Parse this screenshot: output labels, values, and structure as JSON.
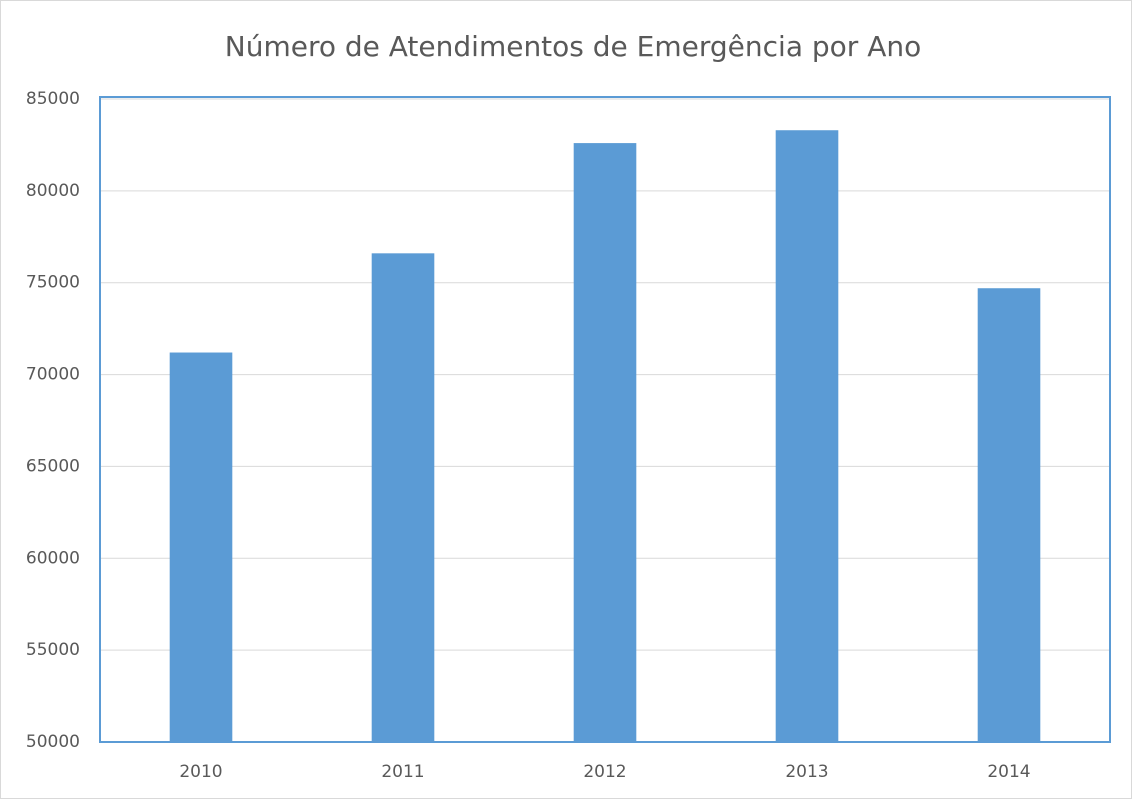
{
  "chart_data": {
    "type": "bar",
    "title": "Número de Atendimentos de Emergência por Ano",
    "categories": [
      "2010",
      "2011",
      "2012",
      "2013",
      "2014"
    ],
    "values": [
      71200,
      76600,
      82600,
      83300,
      74700
    ],
    "color": "#5b9bd5",
    "ylim": [
      50000,
      85000
    ],
    "yticks": [
      50000,
      55000,
      60000,
      65000,
      70000,
      75000,
      80000,
      85000
    ],
    "grid": true
  }
}
